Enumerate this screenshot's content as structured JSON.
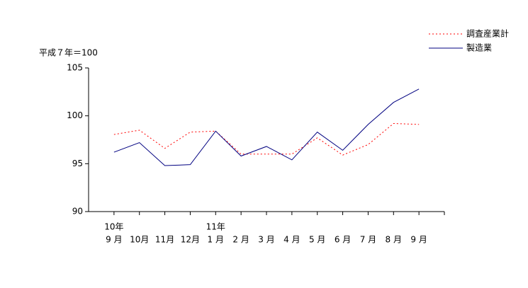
{
  "chart_data": {
    "type": "line",
    "y_label": "平成７年＝100",
    "categories": [
      "9 月",
      "10月",
      "11月",
      "12月",
      "1 月",
      "2 月",
      "3 月",
      "4 月",
      "5 月",
      "6 月",
      "7 月",
      "8 月",
      "9 月"
    ],
    "year_labels": [
      "10年",
      null,
      null,
      null,
      "11年",
      null,
      null,
      null,
      null,
      null,
      null,
      null,
      null
    ],
    "series": [
      {
        "name": "調査産業計",
        "color": "#ff0000",
        "dash": "dotted",
        "values": [
          98.05,
          98.5,
          96.6,
          98.3,
          98.4,
          96.0,
          96.0,
          96.0,
          97.7,
          95.9,
          97.0,
          99.2,
          99.1
        ]
      },
      {
        "name": "製造業",
        "color": "#000080",
        "dash": "solid",
        "values": [
          96.2,
          97.2,
          94.8,
          94.9,
          98.4,
          95.8,
          96.8,
          95.4,
          98.3,
          96.4,
          99.1,
          101.4,
          102.8
        ]
      }
    ],
    "ylim": [
      90,
      105
    ],
    "yticks": [
      90,
      95,
      100,
      105
    ],
    "grid": false,
    "legend": "top-right"
  }
}
